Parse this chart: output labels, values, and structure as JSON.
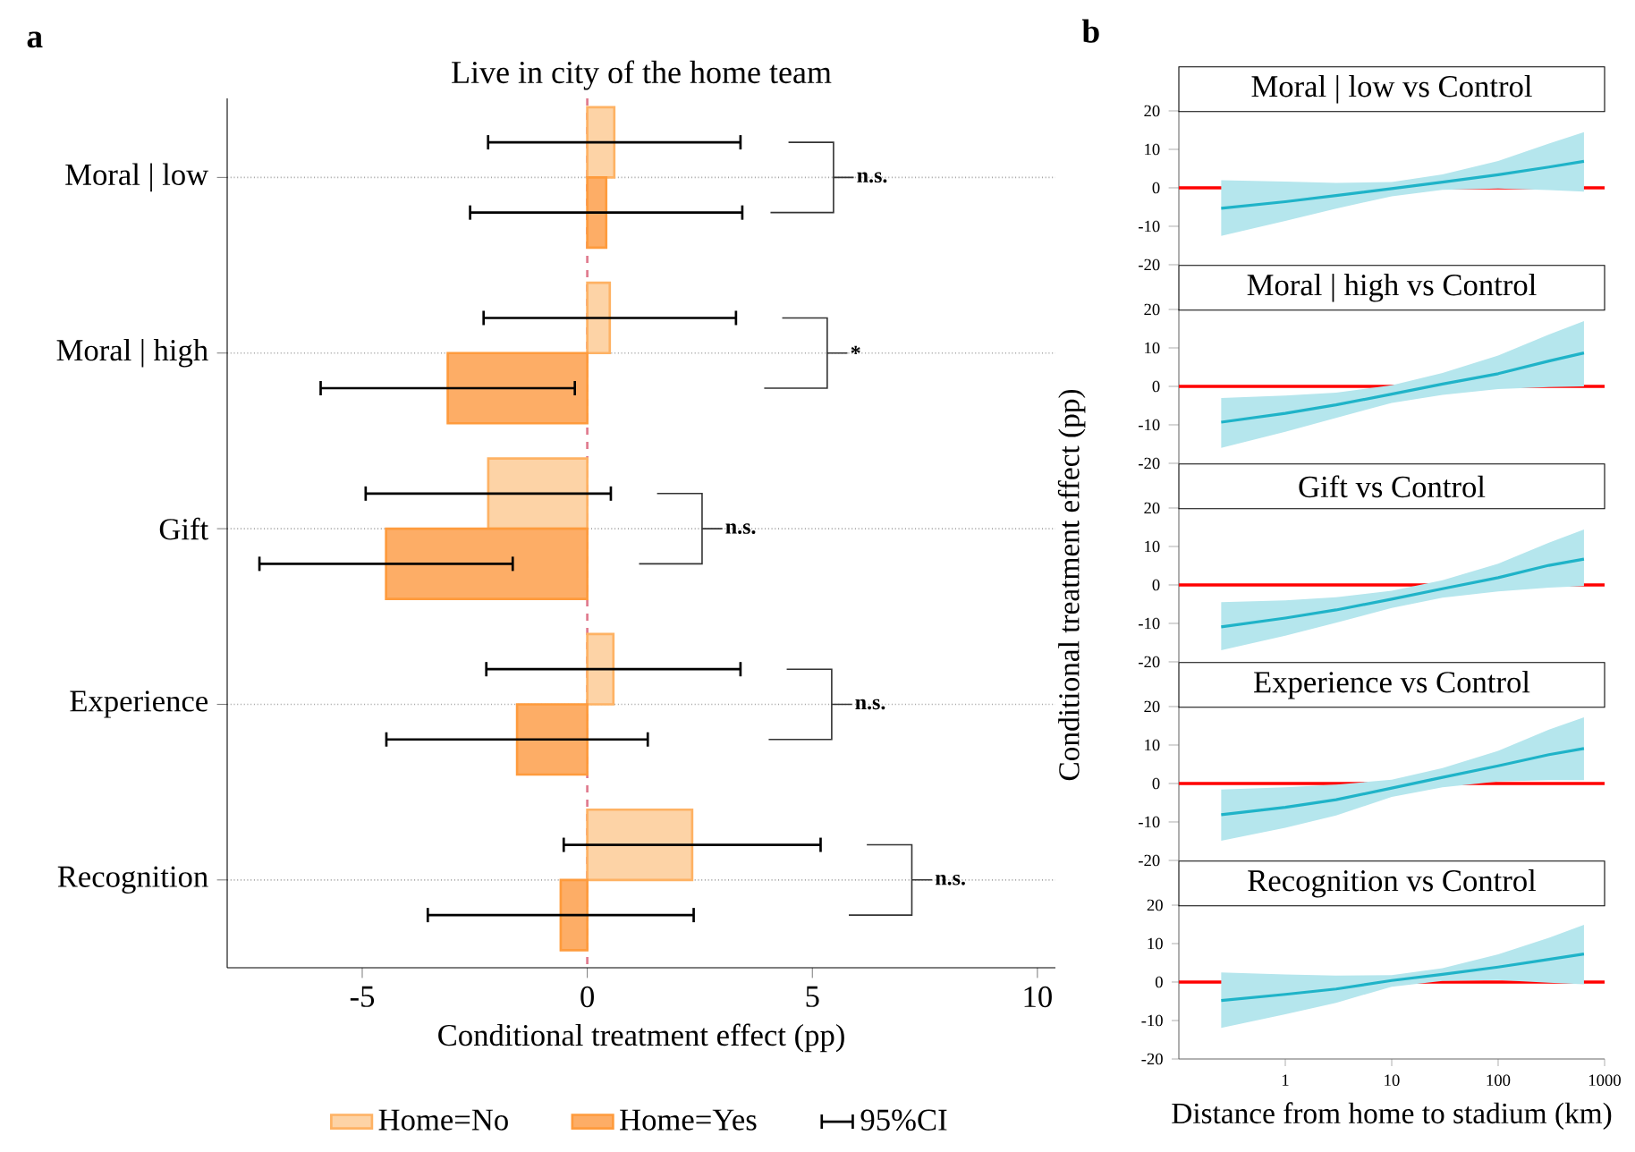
{
  "chart_data": [
    {
      "type": "bar",
      "orientation": "horizontal",
      "title": "Live in city of the home team",
      "xlabel": "Conditional treatment effect (pp)",
      "categories": [
        "Moral | low",
        "Moral | high",
        "Gift",
        "Experience",
        "Recognition"
      ],
      "series": [
        {
          "name": "Home=No",
          "color": "#fdd3a6",
          "values": [
            0.6,
            0.5,
            -2.2,
            0.58,
            2.33
          ],
          "errors": [
            2.83,
            2.83,
            2.75,
            2.85,
            2.88
          ]
        },
        {
          "name": "Home=Yes",
          "color": "#fdad66",
          "values": [
            0.42,
            -3.1,
            -4.47,
            -1.56,
            -0.59
          ],
          "errors": [
            3.05,
            2.85,
            2.84,
            2.93,
            2.98
          ]
        }
      ],
      "xlim": [
        -8,
        10.4
      ],
      "xticks": [
        -5,
        0,
        5,
        10
      ],
      "grid": "y",
      "legend": "bottom",
      "ref_lines": [
        {
          "axis": "x",
          "value": 0,
          "color": "#e07a8e",
          "line_style": "dashed"
        }
      ],
      "annotations": [
        "a",
        "n.s.",
        "*",
        "n.s.",
        "n.s.",
        "n.s.",
        "95%CI"
      ]
    },
    {
      "type": "line",
      "title": "Moral | low vs Control",
      "x": [
        0.25,
        1,
        3,
        10,
        30,
        100,
        300,
        640
      ],
      "log": "x",
      "series": [
        {
          "color": "#1fb3c8",
          "values": [
            -5.3,
            -3.6,
            -2.0,
            -0.2,
            1.5,
            3.4,
            5.4,
            6.9
          ],
          "lower": [
            -12.5,
            -8.6,
            -5.4,
            -2.2,
            -0.5,
            -0.2,
            -0.6,
            -1.0
          ],
          "upper": [
            2.0,
            1.6,
            1.3,
            1.5,
            3.5,
            7.0,
            11.5,
            14.5
          ]
        }
      ],
      "xlim": [
        0.1,
        1000
      ],
      "xticks": [
        1,
        10,
        100,
        1000
      ],
      "ylim": [
        -20,
        20
      ],
      "yticks": [
        -20,
        -10,
        0,
        10,
        20
      ],
      "tick_labels": "y",
      "ref_lines": [
        {
          "axis": "y",
          "value": 0,
          "color": "#ff0000"
        }
      ],
      "annotations": [
        "b"
      ]
    },
    {
      "type": "line",
      "title": "Moral | high vs Control",
      "x": [
        0.25,
        1,
        3,
        10,
        30,
        100,
        300,
        640
      ],
      "log": "x",
      "series": [
        {
          "color": "#1fb3c8",
          "values": [
            -9.3,
            -7.0,
            -4.8,
            -2.0,
            0.6,
            3.3,
            6.6,
            8.7
          ],
          "lower": [
            -16.0,
            -11.8,
            -8.2,
            -4.3,
            -2.2,
            -0.7,
            -0.2,
            0.0
          ],
          "upper": [
            -3.0,
            -2.4,
            -1.6,
            0.3,
            3.5,
            8.0,
            13.5,
            17.0
          ]
        }
      ],
      "xlim": [
        0.1,
        1000
      ],
      "xticks": [
        1,
        10,
        100,
        1000
      ],
      "ylim": [
        -20,
        20
      ],
      "yticks": [
        -20,
        -10,
        0,
        10,
        20
      ],
      "tick_labels": "y",
      "ref_lines": [
        {
          "axis": "y",
          "value": 0,
          "color": "#ff0000"
        }
      ]
    },
    {
      "type": "line",
      "title": "Gift vs Control",
      "ylabel": "Conditional treatment effect (pp)",
      "x": [
        0.25,
        1,
        3,
        10,
        30,
        100,
        300,
        640
      ],
      "log": "x",
      "series": [
        {
          "color": "#1fb3c8",
          "values": [
            -10.9,
            -8.6,
            -6.5,
            -3.7,
            -1.0,
            1.9,
            5.1,
            6.7
          ],
          "lower": [
            -17.0,
            -13.2,
            -9.8,
            -6.0,
            -3.3,
            -1.7,
            -0.7,
            -0.3
          ],
          "upper": [
            -4.5,
            -4.0,
            -3.2,
            -1.5,
            1.2,
            5.5,
            11.0,
            14.4
          ]
        }
      ],
      "xlim": [
        0.1,
        1000
      ],
      "xticks": [
        1,
        10,
        100,
        1000
      ],
      "ylim": [
        -20,
        20
      ],
      "yticks": [
        -20,
        -10,
        0,
        10,
        20
      ],
      "tick_labels": "y",
      "ref_lines": [
        {
          "axis": "y",
          "value": 0,
          "color": "#ff0000"
        }
      ]
    },
    {
      "type": "line",
      "title": "Experience vs Control",
      "x": [
        0.25,
        1,
        3,
        10,
        30,
        100,
        300,
        640
      ],
      "log": "x",
      "series": [
        {
          "color": "#1fb3c8",
          "values": [
            -8.1,
            -6.2,
            -4.2,
            -1.2,
            1.6,
            4.6,
            7.5,
            9.1
          ],
          "lower": [
            -14.9,
            -11.5,
            -8.3,
            -3.5,
            -1.0,
            0.5,
            0.9,
            0.9
          ],
          "upper": [
            -1.6,
            -1.0,
            -0.3,
            1.0,
            4.0,
            8.5,
            14.0,
            17.2
          ]
        }
      ],
      "xlim": [
        0.1,
        1000
      ],
      "xticks": [
        1,
        10,
        100,
        1000
      ],
      "ylim": [
        -20,
        20
      ],
      "yticks": [
        -20,
        -10,
        0,
        10,
        20
      ],
      "tick_labels": "y",
      "ref_lines": [
        {
          "axis": "y",
          "value": 0,
          "color": "#ff0000"
        }
      ]
    },
    {
      "type": "line",
      "title": "Recognition vs Control",
      "xlabel": "Distance from home to stadium (km)",
      "x": [
        0.25,
        1,
        3,
        10,
        30,
        100,
        300,
        640
      ],
      "log": "x",
      "series": [
        {
          "color": "#1fb3c8",
          "values": [
            -4.8,
            -3.2,
            -1.8,
            0.4,
            2.0,
            3.9,
            5.9,
            7.3
          ],
          "lower": [
            -11.9,
            -8.4,
            -5.4,
            -1.2,
            0.3,
            0.5,
            -0.2,
            -0.6
          ],
          "upper": [
            2.5,
            2.0,
            1.7,
            1.8,
            3.6,
            7.2,
            11.5,
            14.9
          ]
        }
      ],
      "xlim": [
        0.1,
        1000
      ],
      "xticks": [
        1,
        10,
        100,
        1000
      ],
      "ylim": [
        -20,
        20
      ],
      "yticks": [
        -20,
        -10,
        0,
        10,
        20
      ],
      "ref_lines": [
        {
          "axis": "y",
          "value": 0,
          "color": "#ff0000"
        }
      ]
    }
  ]
}
